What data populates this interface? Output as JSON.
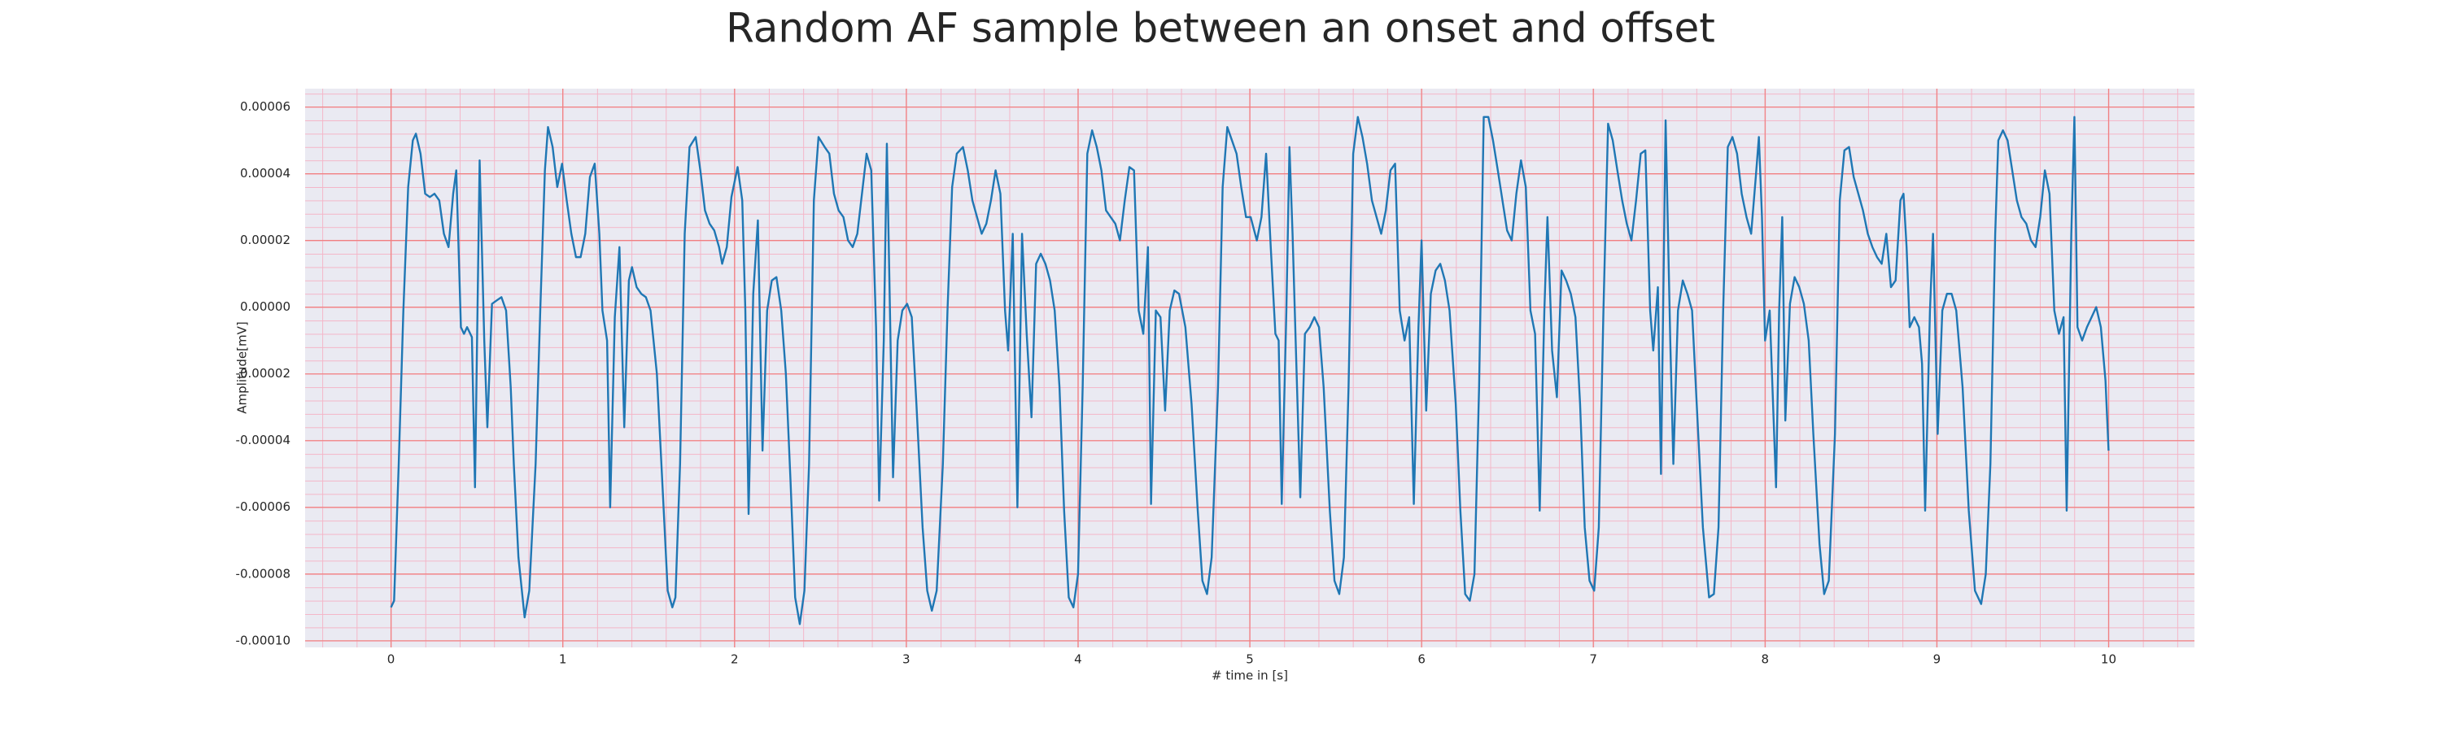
{
  "chart_data": {
    "type": "line",
    "title": "Random AF sample between an onset and offset",
    "x_label": "# time in [s]",
    "y_label": "Amplitude[mV]",
    "color": "#1f77b4",
    "grid": true,
    "minor_grid": true,
    "xlim": [
      -0.5,
      10.5
    ],
    "ylim": [
      -0.000102,
      6.55e-05
    ],
    "xticks": [
      0,
      1,
      2,
      3,
      4,
      5,
      6,
      7,
      8,
      9,
      10
    ],
    "yticks": [
      {
        "value": -0.0001,
        "label": "-0.00010"
      },
      -8e-05,
      -6e-05,
      -4e-05,
      -2e-05,
      {
        "value": 0,
        "label": "0.00000"
      },
      2e-05,
      4e-05,
      6e-05
    ],
    "x": [
      0,
      0.018,
      0.045,
      0.072,
      0.1,
      0.127,
      0.145,
      0.172,
      0.199,
      0.226,
      0.253,
      0.281,
      0.308,
      0.335,
      0.362,
      0.38,
      0.407,
      0.425,
      0.443,
      0.471,
      0.489,
      0.516,
      0.543,
      0.561,
      0.588,
      0.615,
      0.643,
      0.67,
      0.697,
      0.715,
      0.742,
      0.778,
      0.805,
      0.842,
      0.869,
      0.896,
      0.914,
      0.941,
      0.968,
      0.996,
      1.023,
      1.05,
      1.077,
      1.104,
      1.131,
      1.158,
      1.186,
      1.213,
      1.231,
      1.258,
      1.276,
      1.303,
      1.33,
      1.358,
      1.385,
      1.403,
      1.43,
      1.457,
      1.484,
      1.511,
      1.548,
      1.584,
      1.611,
      1.638,
      1.656,
      1.683,
      1.71,
      1.738,
      1.774,
      1.801,
      1.828,
      1.855,
      1.882,
      1.91,
      1.928,
      1.955,
      1.982,
      2.018,
      2.045,
      2.063,
      2.082,
      2.109,
      2.136,
      2.163,
      2.19,
      2.217,
      2.244,
      2.272,
      2.299,
      2.326,
      2.353,
      2.38,
      2.407,
      2.434,
      2.462,
      2.489,
      2.525,
      2.552,
      2.579,
      2.606,
      2.634,
      2.661,
      2.688,
      2.715,
      2.742,
      2.769,
      2.796,
      2.824,
      2.842,
      2.869,
      2.887,
      2.905,
      2.923,
      2.95,
      2.977,
      3.005,
      3.032,
      3.059,
      3.095,
      3.122,
      3.149,
      3.177,
      3.213,
      3.24,
      3.267,
      3.294,
      3.33,
      3.358,
      3.385,
      3.412,
      3.439,
      3.466,
      3.493,
      3.52,
      3.548,
      3.575,
      3.593,
      3.62,
      3.647,
      3.674,
      3.701,
      3.729,
      3.756,
      3.783,
      3.81,
      3.837,
      3.864,
      3.892,
      3.919,
      3.946,
      3.973,
      4.0,
      4.027,
      4.054,
      4.082,
      4.109,
      4.136,
      4.163,
      4.19,
      4.217,
      4.244,
      4.272,
      4.299,
      4.326,
      4.353,
      4.38,
      4.407,
      4.425,
      4.453,
      4.48,
      4.507,
      4.534,
      4.561,
      4.588,
      4.625,
      4.661,
      4.697,
      4.724,
      4.751,
      4.778,
      4.815,
      4.842,
      4.869,
      4.896,
      4.923,
      4.95,
      4.978,
      5.005,
      5.041,
      5.068,
      5.095,
      5.122,
      5.149,
      5.168,
      5.186,
      5.213,
      5.231,
      5.249,
      5.267,
      5.294,
      5.321,
      5.349,
      5.376,
      5.403,
      5.43,
      5.466,
      5.493,
      5.521,
      5.548,
      5.575,
      5.602,
      5.629,
      5.656,
      5.683,
      5.711,
      5.738,
      5.765,
      5.792,
      5.819,
      5.846,
      5.873,
      5.901,
      5.928,
      5.955,
      5.982,
      6.0,
      6.027,
      6.054,
      6.082,
      6.109,
      6.136,
      6.163,
      6.199,
      6.226,
      6.254,
      6.281,
      6.308,
      6.335,
      6.362,
      6.389,
      6.416,
      6.444,
      6.471,
      6.498,
      6.525,
      6.552,
      6.579,
      6.607,
      6.634,
      6.661,
      6.688,
      6.715,
      6.733,
      6.76,
      6.788,
      6.815,
      6.842,
      6.869,
      6.896,
      6.923,
      6.95,
      6.978,
      7.005,
      7.032,
      7.059,
      7.086,
      7.113,
      7.14,
      7.168,
      7.195,
      7.222,
      7.249,
      7.276,
      7.303,
      7.331,
      7.349,
      7.376,
      7.394,
      7.421,
      7.448,
      7.466,
      7.493,
      7.521,
      7.548,
      7.575,
      7.602,
      7.638,
      7.674,
      7.702,
      7.729,
      7.756,
      7.783,
      7.81,
      7.837,
      7.864,
      7.892,
      7.919,
      7.946,
      7.964,
      7.982,
      8.0,
      8.027,
      8.064,
      8.082,
      8.1,
      8.118,
      8.145,
      8.172,
      8.199,
      8.226,
      8.254,
      8.281,
      8.317,
      8.344,
      8.371,
      8.407,
      8.435,
      8.462,
      8.489,
      8.516,
      8.543,
      8.57,
      8.598,
      8.625,
      8.652,
      8.679,
      8.706,
      8.733,
      8.76,
      8.788,
      8.806,
      8.824,
      8.842,
      8.869,
      8.896,
      8.914,
      8.932,
      8.96,
      8.978,
      9.005,
      9.032,
      9.059,
      9.086,
      9.113,
      9.15,
      9.186,
      9.222,
      9.258,
      9.285,
      9.312,
      9.34,
      9.358,
      9.385,
      9.412,
      9.439,
      9.466,
      9.493,
      9.521,
      9.548,
      9.575,
      9.602,
      9.629,
      9.656,
      9.684,
      9.711,
      9.738,
      9.756,
      9.783,
      9.801,
      9.819,
      9.846,
      9.874,
      9.901,
      9.928,
      9.955,
      9.982,
      10.0
    ],
    "values": [
      -9e-05,
      -8.8e-05,
      -4.7e-05,
      -1e-06,
      3.6e-05,
      5e-05,
      5.2e-05,
      4.6e-05,
      3.4e-05,
      3.3e-05,
      3.4e-05,
      3.2e-05,
      2.2e-05,
      1.8e-05,
      3.4e-05,
      4.1e-05,
      -6e-06,
      -8e-06,
      -6e-06,
      -9e-06,
      -5.4e-05,
      4.4e-05,
      -1e-05,
      -3.6e-05,
      1e-06,
      2e-06,
      3e-06,
      -1e-06,
      -2.4e-05,
      -4.7e-05,
      -7.5e-05,
      -9.3e-05,
      -8.5e-05,
      -4.7e-05,
      -1e-06,
      4.1e-05,
      5.4e-05,
      4.8e-05,
      3.6e-05,
      4.3e-05,
      3.2e-05,
      2.2e-05,
      1.5e-05,
      1.5e-05,
      2.2e-05,
      3.9e-05,
      4.3e-05,
      2.2e-05,
      -1e-06,
      -1e-05,
      -6e-05,
      -3e-06,
      1.8e-05,
      -3.6e-05,
      8e-06,
      1.2e-05,
      6e-06,
      4e-06,
      3e-06,
      -1e-06,
      -2e-05,
      -5.7e-05,
      -8.5e-05,
      -9e-05,
      -8.7e-05,
      -4.7e-05,
      2.2e-05,
      4.8e-05,
      5.1e-05,
      4.1e-05,
      2.9e-05,
      2.5e-05,
      2.3e-05,
      1.8e-05,
      1.3e-05,
      1.8e-05,
      3.3e-05,
      4.2e-05,
      3.2e-05,
      -1e-06,
      -6.2e-05,
      4e-06,
      2.6e-05,
      -4.3e-05,
      -1e-06,
      8e-06,
      9e-06,
      -1e-06,
      -2e-05,
      -5.2e-05,
      -8.7e-05,
      -9.5e-05,
      -8.5e-05,
      -4.7e-05,
      3.2e-05,
      5.1e-05,
      4.8e-05,
      4.6e-05,
      3.4e-05,
      2.9e-05,
      2.7e-05,
      2e-05,
      1.8e-05,
      2.2e-05,
      3.4e-05,
      4.6e-05,
      4.1e-05,
      -6e-06,
      -5.8e-05,
      -1e-05,
      4.9e-05,
      -1e-06,
      -5.1e-05,
      -1e-05,
      -1e-06,
      1e-06,
      -3e-06,
      -2.9e-05,
      -6.6e-05,
      -8.5e-05,
      -9.1e-05,
      -8.5e-05,
      -4.7e-05,
      -1e-06,
      3.6e-05,
      4.6e-05,
      4.8e-05,
      4.1e-05,
      3.2e-05,
      2.7e-05,
      2.2e-05,
      2.5e-05,
      3.2e-05,
      4.1e-05,
      3.4e-05,
      -1e-06,
      -1.3e-05,
      2.2e-05,
      -6e-05,
      2.2e-05,
      -8e-06,
      -3.3e-05,
      1.3e-05,
      1.6e-05,
      1.3e-05,
      8e-06,
      -1e-06,
      -2.4e-05,
      -6.1e-05,
      -8.7e-05,
      -9e-05,
      -8e-05,
      -2.4e-05,
      4.6e-05,
      5.3e-05,
      4.8e-05,
      4.1e-05,
      2.9e-05,
      2.7e-05,
      2.5e-05,
      2e-05,
      3.2e-05,
      4.2e-05,
      4.1e-05,
      -1e-06,
      -8e-06,
      1.8e-05,
      -5.9e-05,
      -1e-06,
      -3e-06,
      -3.1e-05,
      -1e-06,
      5e-06,
      4e-06,
      -6e-06,
      -2.9e-05,
      -6.1e-05,
      -8.2e-05,
      -8.6e-05,
      -7.5e-05,
      -2.4e-05,
      3.6e-05,
      5.4e-05,
      5e-05,
      4.6e-05,
      3.6e-05,
      2.7e-05,
      2.7e-05,
      2e-05,
      2.7e-05,
      4.6e-05,
      1.8e-05,
      -8e-06,
      -1e-05,
      -5.9e-05,
      -1e-06,
      4.8e-05,
      2.2e-05,
      -1e-05,
      -5.7e-05,
      -8e-06,
      -6e-06,
      -3e-06,
      -6e-06,
      -2.4e-05,
      -6.1e-05,
      -8.2e-05,
      -8.6e-05,
      -7.5e-05,
      -2.4e-05,
      4.6e-05,
      5.7e-05,
      5.1e-05,
      4.3e-05,
      3.2e-05,
      2.7e-05,
      2.2e-05,
      2.9e-05,
      4.1e-05,
      4.3e-05,
      -1e-06,
      -1e-05,
      -3e-06,
      -5.9e-05,
      -6e-06,
      2e-05,
      -3.1e-05,
      4e-06,
      1.1e-05,
      1.3e-05,
      8e-06,
      -1e-06,
      -2.9e-05,
      -6.1e-05,
      -8.6e-05,
      -8.8e-05,
      -8e-05,
      -2.4e-05,
      5.7e-05,
      5.7e-05,
      5e-05,
      4.1e-05,
      3.2e-05,
      2.3e-05,
      2e-05,
      3.4e-05,
      4.4e-05,
      3.6e-05,
      -1e-06,
      -8e-06,
      -6.1e-05,
      -1e-06,
      2.7e-05,
      -1.3e-05,
      -2.7e-05,
      1.1e-05,
      8e-06,
      4e-06,
      -3e-06,
      -2.9e-05,
      -6.6e-05,
      -8.2e-05,
      -8.5e-05,
      -6.6e-05,
      -1e-06,
      5.5e-05,
      5e-05,
      4.1e-05,
      3.2e-05,
      2.5e-05,
      2e-05,
      3.2e-05,
      4.6e-05,
      4.7e-05,
      -1e-06,
      -1.3e-05,
      6e-06,
      -5e-05,
      5.6e-05,
      -1e-05,
      -4.7e-05,
      -1e-06,
      8e-06,
      4e-06,
      -1e-06,
      -2.9e-05,
      -6.6e-05,
      -8.7e-05,
      -8.6e-05,
      -6.6e-05,
      -1e-06,
      4.8e-05,
      5.1e-05,
      4.6e-05,
      3.4e-05,
      2.7e-05,
      2.2e-05,
      3.9e-05,
      5.1e-05,
      2.7e-05,
      -1e-05,
      -1e-06,
      -5.4e-05,
      -1e-06,
      2.7e-05,
      -3.4e-05,
      1e-06,
      9e-06,
      6e-06,
      1e-06,
      -1e-05,
      -3.8e-05,
      -7.1e-05,
      -8.6e-05,
      -8.2e-05,
      -3.8e-05,
      3.2e-05,
      4.7e-05,
      4.8e-05,
      3.9e-05,
      3.4e-05,
      2.9e-05,
      2.2e-05,
      1.8e-05,
      1.5e-05,
      1.3e-05,
      2.2e-05,
      6e-06,
      8e-06,
      3.2e-05,
      3.4e-05,
      1.8e-05,
      -6e-06,
      -3e-06,
      -6e-06,
      -1.7e-05,
      -6.1e-05,
      -1e-06,
      2.2e-05,
      -3.8e-05,
      -1e-06,
      4e-06,
      4e-06,
      -1e-06,
      -2.4e-05,
      -6.1e-05,
      -8.5e-05,
      -8.9e-05,
      -8e-05,
      -4.7e-05,
      2.2e-05,
      5e-05,
      5.3e-05,
      5e-05,
      4.1e-05,
      3.2e-05,
      2.7e-05,
      2.5e-05,
      2e-05,
      1.8e-05,
      2.7e-05,
      4.1e-05,
      3.4e-05,
      -1e-06,
      -8e-06,
      -3e-06,
      -6.1e-05,
      2.2e-05,
      5.7e-05,
      -6e-06,
      -1e-05,
      -6e-06,
      -3e-06,
      0,
      -6e-06,
      -2.2e-05,
      -4.3e-05
    ]
  }
}
